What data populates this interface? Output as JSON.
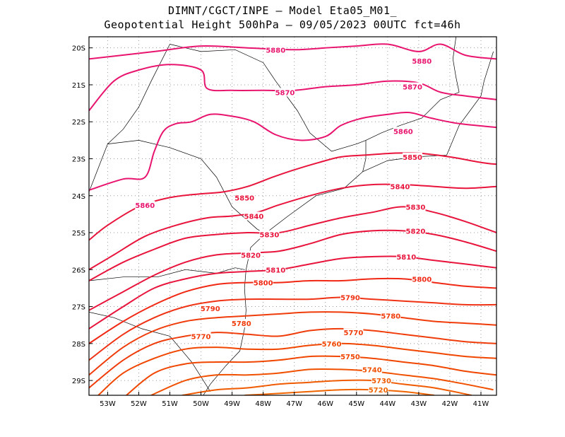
{
  "header": {
    "line1": "DIMNT/CGCT/INPE –  Model Eta05_M01_",
    "line2": "Geopotential Height 500hPa –  09/05/2023 00UTC fct=46h"
  },
  "map": {
    "lon_range": [
      -53.6,
      -40.5
    ],
    "lat_range": [
      -29.4,
      -19.7
    ],
    "lon_ticks": [
      {
        "value": -53,
        "label": "53W"
      },
      {
        "value": -52,
        "label": "52W"
      },
      {
        "value": -51,
        "label": "51W"
      },
      {
        "value": -50,
        "label": "50W"
      },
      {
        "value": -49,
        "label": "49W"
      },
      {
        "value": -48,
        "label": "48W"
      },
      {
        "value": -47,
        "label": "47W"
      },
      {
        "value": -46,
        "label": "46W"
      },
      {
        "value": -45,
        "label": "45W"
      },
      {
        "value": -44,
        "label": "44W"
      },
      {
        "value": -43,
        "label": "43W"
      },
      {
        "value": -42,
        "label": "42W"
      },
      {
        "value": -41,
        "label": "41W"
      }
    ],
    "lat_ticks": [
      {
        "value": -20,
        "label": "20S"
      },
      {
        "value": -21,
        "label": "21S"
      },
      {
        "value": -22,
        "label": "22S"
      },
      {
        "value": -23,
        "label": "23S"
      },
      {
        "value": -24,
        "label": "24S"
      },
      {
        "value": -25,
        "label": "25S"
      },
      {
        "value": -26,
        "label": "26S"
      },
      {
        "value": -27,
        "label": "27S"
      },
      {
        "value": -28,
        "label": "28S"
      },
      {
        "value": -29,
        "label": "29S"
      }
    ],
    "grid": "dotted",
    "colors": {
      "high": "#e8146e",
      "mid": "#e8143c",
      "low": "#f03c00",
      "lowest": "#f06400",
      "grid": "#999999",
      "borders": "#000000"
    }
  },
  "contours": [
    {
      "value": 5880,
      "label": "5880",
      "color": "#e8146e",
      "points": [
        [
          -53.6,
          -20.3
        ],
        [
          -51.5,
          -20.1
        ],
        [
          -50,
          -19.95
        ],
        [
          -48.5,
          -20.0
        ],
        [
          -47,
          -20.05
        ],
        [
          -46,
          -20.0
        ],
        [
          -45,
          -19.95
        ],
        [
          -44,
          -19.9
        ],
        [
          -43,
          -20.1
        ],
        [
          -42.3,
          -19.9
        ],
        [
          -41.5,
          -20.2
        ],
        [
          -40.5,
          -20.3
        ]
      ],
      "labels": [
        [
          -47.6,
          -20.05
        ],
        [
          -42.9,
          -20.35
        ]
      ]
    },
    {
      "value": 5870,
      "label": "5870",
      "color": "#e8146e",
      "points": [
        [
          -53.6,
          -21.7
        ],
        [
          -52.8,
          -20.9
        ],
        [
          -52,
          -20.6
        ],
        [
          -51,
          -20.45
        ],
        [
          -50,
          -20.6
        ],
        [
          -49.8,
          -21.1
        ],
        [
          -49,
          -21.15
        ],
        [
          -48,
          -21.15
        ],
        [
          -47,
          -21.15
        ],
        [
          -46,
          -21.05
        ],
        [
          -45,
          -21.0
        ],
        [
          -44,
          -20.9
        ],
        [
          -43,
          -20.95
        ],
        [
          -42.3,
          -21.2
        ],
        [
          -41.5,
          -21.3
        ],
        [
          -40.5,
          -21.4
        ]
      ],
      "labels": [
        [
          -47.3,
          -21.2
        ],
        [
          -43.2,
          -21.05
        ]
      ]
    },
    {
      "value": 5860,
      "label": "5860",
      "color": "#e8146e",
      "points": [
        [
          -53.6,
          -23.85
        ],
        [
          -52.5,
          -23.55
        ],
        [
          -51.8,
          -23.5
        ],
        [
          -51.5,
          -22.8
        ],
        [
          -51.2,
          -22.25
        ],
        [
          -50.8,
          -22.05
        ],
        [
          -50.3,
          -22.0
        ],
        [
          -49.7,
          -21.8
        ],
        [
          -49,
          -21.85
        ],
        [
          -48.3,
          -22.0
        ],
        [
          -47.6,
          -22.35
        ],
        [
          -46.8,
          -22.5
        ],
        [
          -46,
          -22.4
        ],
        [
          -45.5,
          -22.1
        ],
        [
          -44.8,
          -21.9
        ],
        [
          -44,
          -21.8
        ],
        [
          -43.3,
          -21.75
        ],
        [
          -42.6,
          -21.9
        ],
        [
          -41.7,
          -22.05
        ],
        [
          -40.5,
          -22.15
        ]
      ],
      "labels": [
        [
          -51.8,
          -24.25
        ],
        [
          -43.5,
          -22.25
        ]
      ]
    },
    {
      "value": 5850,
      "label": "5850",
      "color": "#e8143c",
      "points": [
        [
          -53.6,
          -25.2
        ],
        [
          -53,
          -24.8
        ],
        [
          -52,
          -24.3
        ],
        [
          -51,
          -24.05
        ],
        [
          -50,
          -23.95
        ],
        [
          -49.3,
          -23.9
        ],
        [
          -48.5,
          -23.75
        ],
        [
          -47.7,
          -23.5
        ],
        [
          -47,
          -23.3
        ],
        [
          -46.2,
          -23.1
        ],
        [
          -45.5,
          -22.95
        ],
        [
          -44.7,
          -22.9
        ],
        [
          -43.8,
          -22.85
        ],
        [
          -43,
          -22.85
        ],
        [
          -42,
          -22.95
        ],
        [
          -41,
          -23.1
        ],
        [
          -40.5,
          -23.15
        ]
      ],
      "labels": [
        [
          -48.6,
          -24.05
        ],
        [
          -43.2,
          -22.95
        ]
      ]
    },
    {
      "value": 5840,
      "label": "5840",
      "color": "#e8143c",
      "points": [
        [
          -53.6,
          -26.0
        ],
        [
          -52.8,
          -25.6
        ],
        [
          -51.8,
          -25.1
        ],
        [
          -50.8,
          -24.8
        ],
        [
          -49.8,
          -24.6
        ],
        [
          -49,
          -24.55
        ],
        [
          -48.2,
          -24.45
        ],
        [
          -47.5,
          -24.25
        ],
        [
          -46.5,
          -24.0
        ],
        [
          -45.5,
          -23.8
        ],
        [
          -44.5,
          -23.7
        ],
        [
          -43.5,
          -23.7
        ],
        [
          -42.5,
          -23.75
        ],
        [
          -41.5,
          -23.8
        ],
        [
          -40.5,
          -23.75
        ]
      ],
      "labels": [
        [
          -48.3,
          -24.55
        ],
        [
          -43.6,
          -23.75
        ]
      ]
    },
    {
      "value": 5830,
      "label": "5830",
      "color": "#e8143c",
      "points": [
        [
          -53.6,
          -26.3
        ],
        [
          -52.5,
          -25.8
        ],
        [
          -51.5,
          -25.45
        ],
        [
          -50.5,
          -25.15
        ],
        [
          -49.5,
          -25.05
        ],
        [
          -48.5,
          -25.0
        ],
        [
          -47.5,
          -25.0
        ],
        [
          -46.5,
          -24.8
        ],
        [
          -45.5,
          -24.6
        ],
        [
          -44.5,
          -24.45
        ],
        [
          -43.5,
          -24.3
        ],
        [
          -42.5,
          -24.45
        ],
        [
          -41.5,
          -24.7
        ],
        [
          -40.5,
          -25.0
        ]
      ],
      "labels": [
        [
          -47.8,
          -25.05
        ],
        [
          -43.1,
          -24.3
        ]
      ]
    },
    {
      "value": 5820,
      "label": "5820",
      "color": "#e8143c",
      "points": [
        [
          -53.6,
          -27.1
        ],
        [
          -52.5,
          -26.6
        ],
        [
          -51.5,
          -26.15
        ],
        [
          -50.5,
          -25.8
        ],
        [
          -49.5,
          -25.6
        ],
        [
          -48.5,
          -25.55
        ],
        [
          -47.5,
          -25.5
        ],
        [
          -46.5,
          -25.3
        ],
        [
          -45.5,
          -25.05
        ],
        [
          -44.5,
          -24.95
        ],
        [
          -43.5,
          -24.95
        ],
        [
          -42.5,
          -25.05
        ],
        [
          -41.5,
          -25.25
        ],
        [
          -40.5,
          -25.5
        ]
      ],
      "labels": [
        [
          -48.4,
          -25.6
        ],
        [
          -43.1,
          -24.95
        ]
      ]
    },
    {
      "value": 5810,
      "label": "5810",
      "color": "#e8143c",
      "points": [
        [
          -53.6,
          -27.6
        ],
        [
          -52.5,
          -27.0
        ],
        [
          -51.5,
          -26.5
        ],
        [
          -50.5,
          -26.25
        ],
        [
          -49.5,
          -26.1
        ],
        [
          -48.5,
          -26.05
        ],
        [
          -47.5,
          -26.0
        ],
        [
          -46.5,
          -25.85
        ],
        [
          -45.5,
          -25.7
        ],
        [
          -44.5,
          -25.65
        ],
        [
          -43.5,
          -25.65
        ],
        [
          -42.5,
          -25.75
        ],
        [
          -41.5,
          -25.85
        ],
        [
          -40.5,
          -25.95
        ]
      ],
      "labels": [
        [
          -47.6,
          -26.0
        ],
        [
          -43.4,
          -25.65
        ]
      ]
    },
    {
      "value": 5800,
      "label": "5800",
      "color": "#f02814",
      "points": [
        [
          -53.6,
          -28.0
        ],
        [
          -52.5,
          -27.4
        ],
        [
          -51.5,
          -26.95
        ],
        [
          -50.5,
          -26.6
        ],
        [
          -49.5,
          -26.4
        ],
        [
          -48.5,
          -26.35
        ],
        [
          -47.5,
          -26.35
        ],
        [
          -46.5,
          -26.3
        ],
        [
          -45.5,
          -26.3
        ],
        [
          -44.5,
          -26.25
        ],
        [
          -43.5,
          -26.25
        ],
        [
          -42.5,
          -26.35
        ],
        [
          -41.5,
          -26.45
        ],
        [
          -40.5,
          -26.5
        ]
      ],
      "labels": [
        [
          -48.0,
          -26.35
        ],
        [
          -42.9,
          -26.25
        ]
      ]
    },
    {
      "value": 5790,
      "label": "5790",
      "color": "#f03214",
      "points": [
        [
          -53.6,
          -28.45
        ],
        [
          -52.5,
          -27.75
        ],
        [
          -51.5,
          -27.3
        ],
        [
          -50.5,
          -27.0
        ],
        [
          -49.5,
          -26.85
        ],
        [
          -48.5,
          -26.8
        ],
        [
          -47.5,
          -26.8
        ],
        [
          -46.5,
          -26.8
        ],
        [
          -45.5,
          -26.75
        ],
        [
          -44.5,
          -26.8
        ],
        [
          -43.5,
          -26.85
        ],
        [
          -42.5,
          -26.9
        ],
        [
          -41.5,
          -26.95
        ],
        [
          -40.5,
          -26.95
        ]
      ],
      "labels": [
        [
          -49.7,
          -27.05
        ],
        [
          -45.2,
          -26.75
        ]
      ]
    },
    {
      "value": 5780,
      "label": "5780",
      "color": "#f03c0a",
      "points": [
        [
          -53.6,
          -28.85
        ],
        [
          -52.5,
          -28.1
        ],
        [
          -51.5,
          -27.65
        ],
        [
          -50.5,
          -27.4
        ],
        [
          -49.5,
          -27.3
        ],
        [
          -48.5,
          -27.25
        ],
        [
          -47.5,
          -27.2
        ],
        [
          -46.5,
          -27.15
        ],
        [
          -45.5,
          -27.15
        ],
        [
          -44.5,
          -27.2
        ],
        [
          -43.5,
          -27.3
        ],
        [
          -42.5,
          -27.4
        ],
        [
          -41.5,
          -27.45
        ],
        [
          -40.5,
          -27.5
        ]
      ],
      "labels": [
        [
          -48.7,
          -27.45
        ],
        [
          -43.9,
          -27.25
        ]
      ]
    },
    {
      "value": 5770,
      "label": "5770",
      "color": "#f03c0a",
      "points": [
        [
          -53.6,
          -29.2
        ],
        [
          -52.5,
          -28.45
        ],
        [
          -51.5,
          -28.0
        ],
        [
          -50.5,
          -27.8
        ],
        [
          -49.5,
          -27.7
        ],
        [
          -48.5,
          -27.75
        ],
        [
          -47.5,
          -27.8
        ],
        [
          -46.5,
          -27.65
        ],
        [
          -45.5,
          -27.6
        ],
        [
          -44.5,
          -27.65
        ],
        [
          -43.5,
          -27.75
        ],
        [
          -42.5,
          -27.85
        ],
        [
          -41.5,
          -27.95
        ],
        [
          -40.5,
          -28.0
        ]
      ],
      "labels": [
        [
          -50.0,
          -27.8
        ],
        [
          -45.1,
          -27.7
        ]
      ]
    },
    {
      "value": 5760,
      "label": "5760",
      "color": "#f04600",
      "points": [
        [
          -53.3,
          -29.4
        ],
        [
          -52.5,
          -28.8
        ],
        [
          -51.5,
          -28.4
        ],
        [
          -50.5,
          -28.15
        ],
        [
          -49.5,
          -28.1
        ],
        [
          -48.5,
          -28.15
        ],
        [
          -47.5,
          -28.15
        ],
        [
          -46.5,
          -28.05
        ],
        [
          -45.5,
          -28.0
        ],
        [
          -44.5,
          -28.05
        ],
        [
          -43.5,
          -28.15
        ],
        [
          -42.5,
          -28.25
        ],
        [
          -41.5,
          -28.35
        ],
        [
          -40.5,
          -28.4
        ]
      ],
      "labels": [
        [
          -45.8,
          -28.0
        ]
      ]
    },
    {
      "value": 5750,
      "label": "5750",
      "color": "#f04600",
      "points": [
        [
          -52.4,
          -29.4
        ],
        [
          -51.5,
          -28.8
        ],
        [
          -50.5,
          -28.55
        ],
        [
          -49.5,
          -28.5
        ],
        [
          -48.5,
          -28.5
        ],
        [
          -47.5,
          -28.45
        ],
        [
          -46.5,
          -28.35
        ],
        [
          -45.5,
          -28.35
        ],
        [
          -44.5,
          -28.4
        ],
        [
          -43.5,
          -28.5
        ],
        [
          -42.5,
          -28.6
        ],
        [
          -41.5,
          -28.75
        ],
        [
          -40.5,
          -28.85
        ]
      ],
      "labels": [
        [
          -45.2,
          -28.35
        ]
      ]
    },
    {
      "value": 5740,
      "label": "5740",
      "color": "#f05000",
      "points": [
        [
          -51.6,
          -29.4
        ],
        [
          -50.5,
          -29.0
        ],
        [
          -49.5,
          -28.85
        ],
        [
          -48.5,
          -28.85
        ],
        [
          -47.5,
          -28.8
        ],
        [
          -46.5,
          -28.7
        ],
        [
          -45.5,
          -28.7
        ],
        [
          -44.5,
          -28.75
        ],
        [
          -43.5,
          -28.85
        ],
        [
          -42.5,
          -28.95
        ],
        [
          -41.5,
          -29.1
        ],
        [
          -40.6,
          -29.25
        ]
      ],
      "labels": [
        [
          -44.5,
          -28.7
        ]
      ]
    },
    {
      "value": 5730,
      "label": "5730",
      "color": "#f05a00",
      "points": [
        [
          -50.6,
          -29.4
        ],
        [
          -49.5,
          -29.25
        ],
        [
          -48.5,
          -29.2
        ],
        [
          -47.5,
          -29.1
        ],
        [
          -46.5,
          -29.05
        ],
        [
          -45.5,
          -29.0
        ],
        [
          -44.5,
          -29.0
        ],
        [
          -43.5,
          -29.1
        ],
        [
          -42.5,
          -29.2
        ],
        [
          -41.3,
          -29.4
        ]
      ],
      "labels": [
        [
          -44.2,
          -29.0
        ]
      ]
    },
    {
      "value": 5720,
      "label": "5720",
      "color": "#f06400",
      "points": [
        [
          -48.6,
          -29.4
        ],
        [
          -47.5,
          -29.35
        ],
        [
          -46.5,
          -29.3
        ],
        [
          -45.5,
          -29.25
        ],
        [
          -44.5,
          -29.25
        ],
        [
          -43.5,
          -29.3
        ],
        [
          -42.5,
          -29.4
        ]
      ],
      "labels": [
        [
          -44.3,
          -29.25
        ]
      ]
    }
  ]
}
